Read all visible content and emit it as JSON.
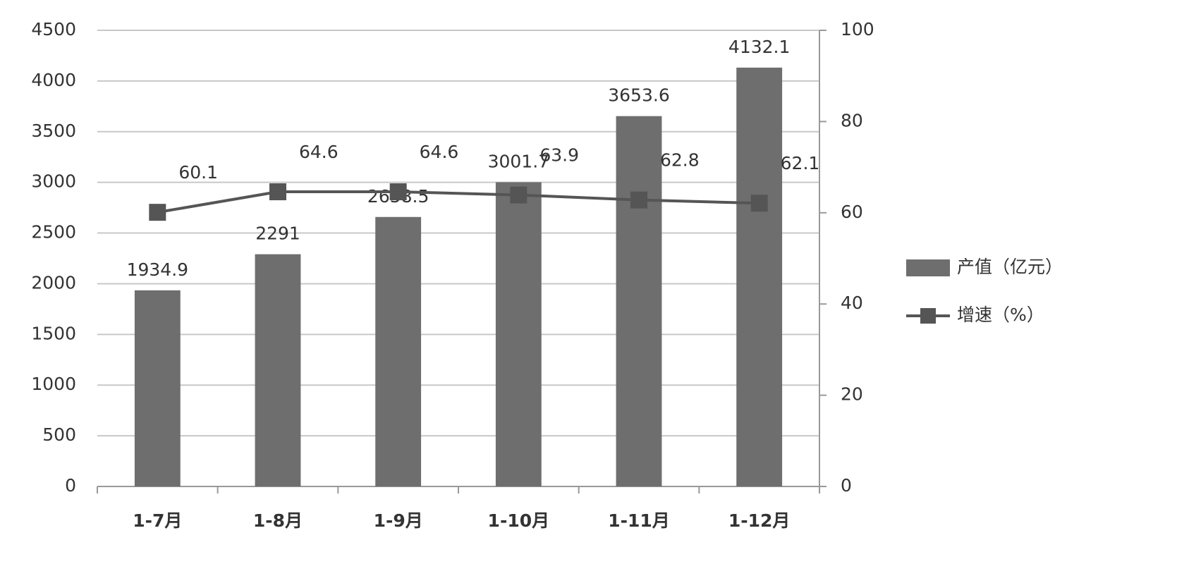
{
  "chart_data": {
    "type": "bar",
    "categories": [
      "1-7月",
      "1-8月",
      "1-9月",
      "1-10月",
      "1-11月",
      "1-12月"
    ],
    "series": [
      {
        "name": "产值（亿元）",
        "type": "bar",
        "color": "#6e6e6e",
        "values": [
          1934.9,
          2291,
          2658.5,
          3001.7,
          3653.6,
          4132.1
        ]
      },
      {
        "name": "增速（%）",
        "type": "line",
        "axis": "y2",
        "color": "#555555",
        "values": [
          60.1,
          64.6,
          64.6,
          63.9,
          62.8,
          62.1
        ]
      }
    ],
    "ylim": [
      0,
      4500
    ],
    "yticks": [
      0,
      500,
      1000,
      1500,
      2000,
      2500,
      3000,
      3500,
      4000,
      4500
    ],
    "y2lim": [
      0,
      100
    ],
    "y2ticks": [
      0,
      20,
      40,
      60,
      80,
      100
    ],
    "grid": true,
    "legend": "right"
  }
}
